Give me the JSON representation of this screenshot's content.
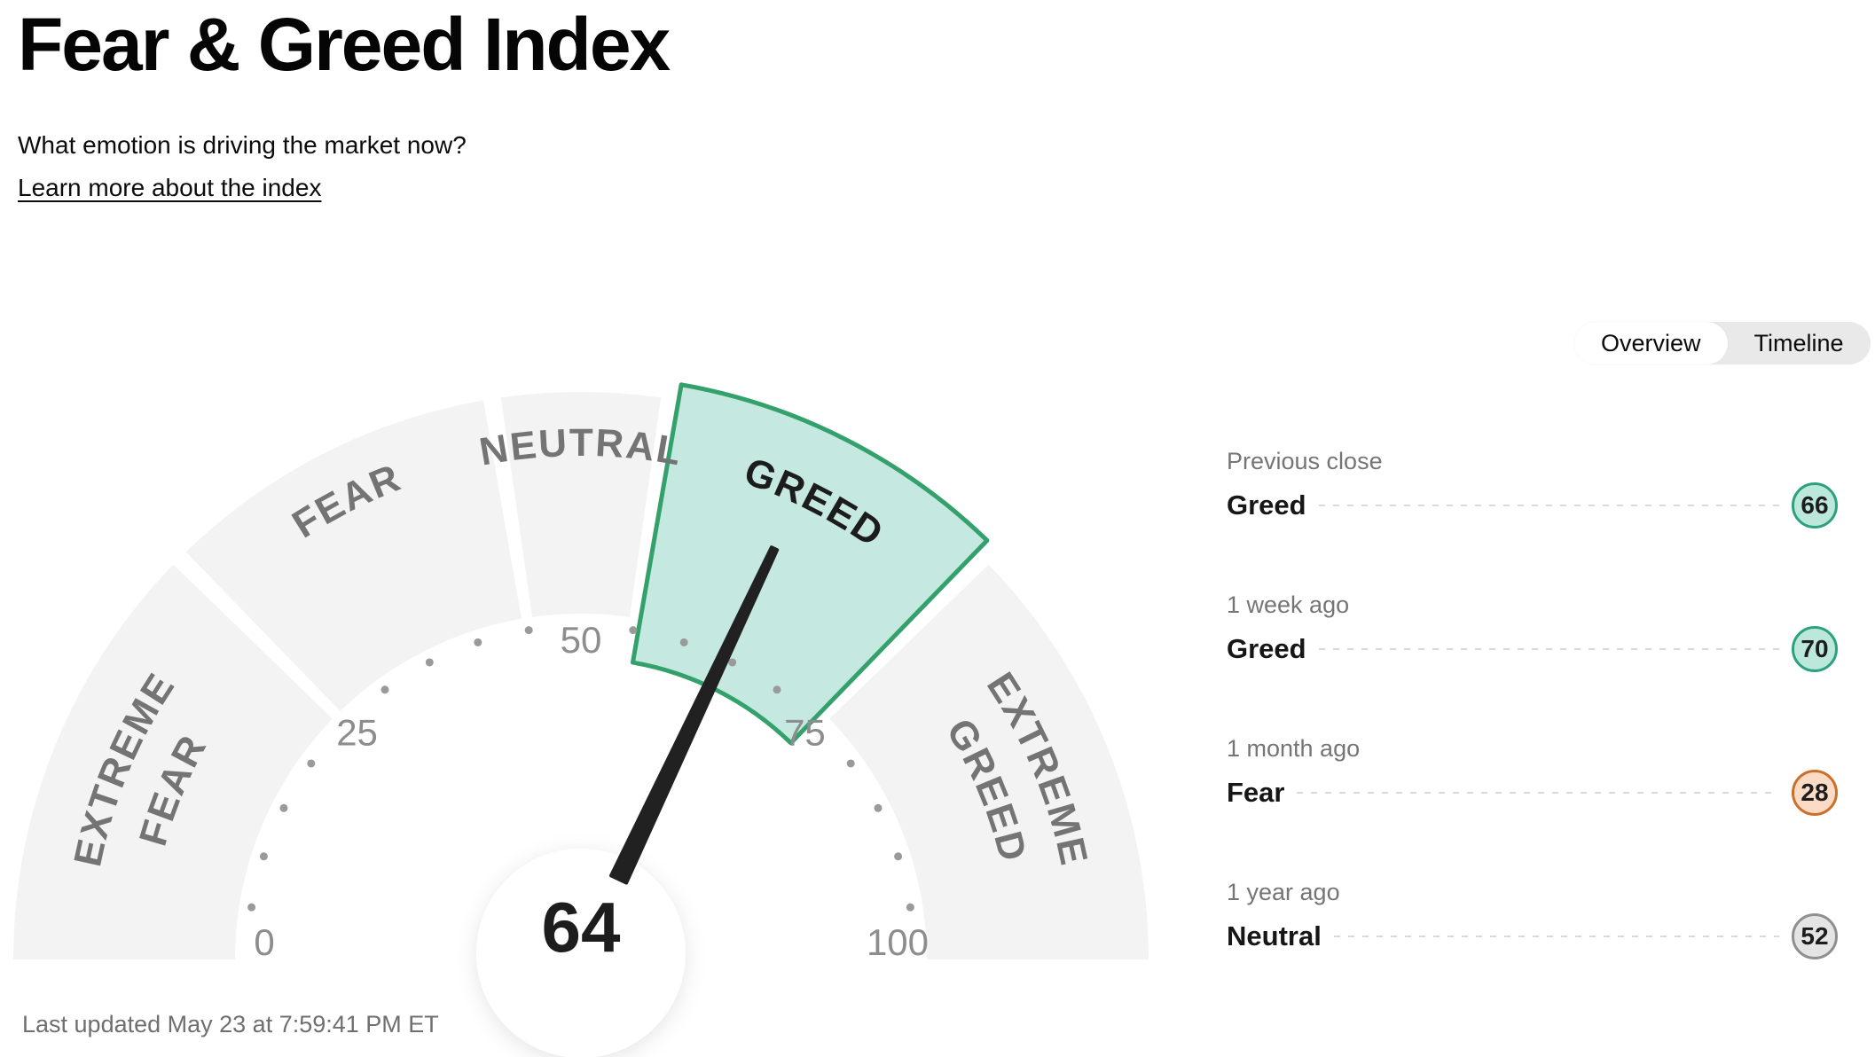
{
  "header": {
    "title": "Fear & Greed Index",
    "subtitle": "What emotion is driving the market now?",
    "learn_more": "Learn more about the index"
  },
  "view_toggle": {
    "options": [
      "Overview",
      "Timeline"
    ],
    "active": "Overview"
  },
  "history": [
    {
      "period": "Previous close",
      "label": "Greed",
      "value": "66",
      "color": "teal"
    },
    {
      "period": "1 week ago",
      "label": "Greed",
      "value": "70",
      "color": "teal"
    },
    {
      "period": "1 month ago",
      "label": "Fear",
      "value": "28",
      "color": "orange"
    },
    {
      "period": "1 year ago",
      "label": "Neutral",
      "value": "52",
      "color": "gray"
    }
  ],
  "colors": {
    "teal": {
      "fill": "#bce8dc",
      "border": "#2ca17d"
    },
    "orange": {
      "fill": "#fbdac6",
      "border": "#cc6f28"
    },
    "gray": {
      "fill": "#e4e4e4",
      "border": "#8f8f8f"
    }
  },
  "footer": {
    "last_updated": "Last updated May 23 at 7:59:41 PM ET"
  },
  "chart_data": {
    "type": "gauge",
    "title": "Fear & Greed Index",
    "value": 64,
    "min": 0,
    "max": 100,
    "current_sentiment": "Greed",
    "segments": [
      {
        "label": "EXTREME FEAR",
        "lines": [
          "EXTREME",
          "FEAR"
        ],
        "from": 0,
        "to": 25,
        "highlight": false
      },
      {
        "label": "FEAR",
        "lines": [
          "FEAR"
        ],
        "from": 25,
        "to": 45,
        "highlight": false
      },
      {
        "label": "NEUTRAL",
        "lines": [
          "NEUTRAL"
        ],
        "from": 45,
        "to": 55,
        "highlight": false
      },
      {
        "label": "GREED",
        "lines": [
          "GREED"
        ],
        "from": 55,
        "to": 75,
        "highlight": true
      },
      {
        "label": "EXTREME GREED",
        "lines": [
          "EXTREME",
          "GREED"
        ],
        "from": 75,
        "to": 100,
        "highlight": false
      }
    ],
    "axis_tick_labels": [
      0,
      25,
      50,
      75,
      100
    ],
    "dot_step": 5,
    "colors": {
      "segment_fill": "#f3f3f3",
      "highlight_fill": "#c5e9e0",
      "highlight_border": "#34a16d",
      "segment_label": "#747474",
      "highlight_label": "#1c1c1c",
      "tick_label": "#8d8d8d",
      "tick_dot": "#9a9a9a",
      "needle": "#212121",
      "center_value": "#1d1d1d"
    }
  }
}
